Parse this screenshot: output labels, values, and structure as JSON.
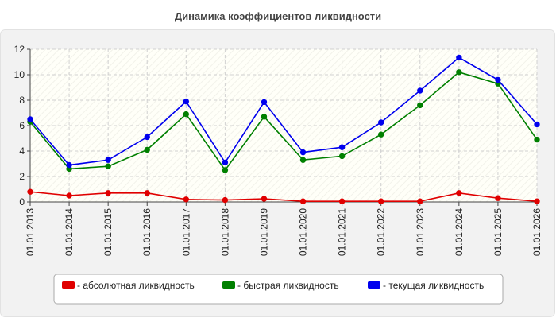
{
  "chart_data": {
    "type": "line",
    "title": "Динамика коэффициентов ликвидности",
    "xlabel": "",
    "ylabel": "",
    "ylim": [
      0,
      12
    ],
    "yticks": [
      0,
      2,
      4,
      6,
      8,
      10,
      12
    ],
    "grid": true,
    "legend_position": "bottom",
    "categories": [
      "01.01.2013",
      "01.01.2014",
      "01.01.2015",
      "01.01.2016",
      "01.01.2017",
      "01.01.2018",
      "01.01.2019",
      "01.01.2020",
      "01.01.2021",
      "01.01.2022",
      "01.01.2023",
      "01.01.2024",
      "01.01.2025",
      "01.01.2026"
    ],
    "series": [
      {
        "name": "- абсолютная ликвидность",
        "color": "#e00000",
        "values": [
          0.8,
          0.5,
          0.7,
          0.7,
          0.2,
          0.15,
          0.25,
          0.05,
          0.05,
          0.05,
          0.05,
          0.7,
          0.3,
          0.05
        ]
      },
      {
        "name": "- быстрая ликвидность",
        "color": "#008000",
        "values": [
          6.3,
          2.6,
          2.8,
          4.1,
          6.9,
          2.5,
          6.7,
          3.3,
          3.6,
          5.3,
          7.6,
          10.2,
          9.3,
          4.9
        ]
      },
      {
        "name": "- текущая ликвидность",
        "color": "#0000ee",
        "values": [
          6.5,
          2.9,
          3.3,
          5.1,
          7.9,
          3.1,
          7.85,
          3.9,
          4.3,
          6.25,
          8.75,
          11.35,
          9.6,
          6.1
        ]
      }
    ]
  }
}
